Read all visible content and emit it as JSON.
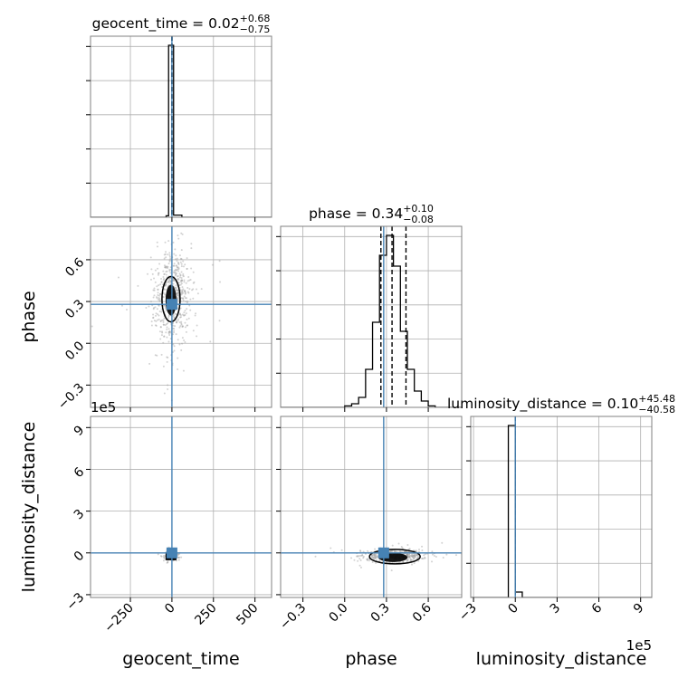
{
  "chart_data": {
    "type": "corner",
    "parameters": [
      "geocent_time",
      "phase",
      "luminosity_distance"
    ],
    "truth": {
      "geocent_time": 0.0,
      "phase": 0.28,
      "luminosity_distance": 0.0
    },
    "titles": [
      {
        "name": "geocent_time",
        "median": "0.02",
        "plus": "+0.68",
        "minus": "−0.75"
      },
      {
        "name": "phase",
        "median": "0.34",
        "plus": "+0.10",
        "minus": "−0.08"
      },
      {
        "name": "luminosity_distance",
        "median": "0.10",
        "plus": "+45.48",
        "minus": "−40.58"
      }
    ],
    "axes": {
      "geocent_time": {
        "range": [
          -490,
          600
        ],
        "ticks": [
          -250,
          0,
          250,
          500
        ],
        "tick_labels": [
          "−250",
          "0",
          "250",
          "500"
        ]
      },
      "phase": {
        "range": [
          -0.46,
          0.84
        ],
        "ticks": [
          -0.3,
          0.0,
          0.3,
          0.6
        ],
        "tick_labels": [
          "−0.3",
          "0.0",
          "0.3",
          "0.6"
        ]
      },
      "luminosity_distance": {
        "range": [
          -3.2,
          9.8
        ],
        "ticks": [
          -3,
          0,
          3,
          6,
          9
        ],
        "tick_labels": [
          "−3",
          "0",
          "3",
          "6",
          "9"
        ],
        "offset_label": "1e5"
      }
    },
    "histograms": {
      "geocent_time": {
        "bins": [
          [
            -490,
            -35,
            0.0
          ],
          [
            -35,
            -20,
            0.008
          ],
          [
            -20,
            -5,
            0.95
          ],
          [
            -5,
            10,
            0.95
          ],
          [
            10,
            60,
            0.012
          ],
          [
            60,
            600,
            0.0
          ]
        ],
        "quantile_lines": [
          -0.73,
          0.02,
          0.7
        ]
      },
      "phase": {
        "bins": [
          [
            -0.46,
            0.0,
            0.0
          ],
          [
            0.0,
            0.05,
            0.008
          ],
          [
            0.05,
            0.1,
            0.02
          ],
          [
            0.1,
            0.15,
            0.055
          ],
          [
            0.15,
            0.2,
            0.21
          ],
          [
            0.2,
            0.25,
            0.47
          ],
          [
            0.25,
            0.3,
            0.84
          ],
          [
            0.3,
            0.35,
            0.95
          ],
          [
            0.35,
            0.4,
            0.78
          ],
          [
            0.4,
            0.45,
            0.42
          ],
          [
            0.45,
            0.5,
            0.21
          ],
          [
            0.5,
            0.55,
            0.09
          ],
          [
            0.55,
            0.6,
            0.035
          ],
          [
            0.6,
            0.65,
            0.008
          ],
          [
            0.65,
            0.84,
            0.0
          ]
        ],
        "quantile_lines": [
          0.26,
          0.34,
          0.44
        ]
      },
      "luminosity_distance": {
        "bins": [
          [
            -3.2,
            -0.5,
            0.0
          ],
          [
            -0.5,
            0.0,
            0.95
          ],
          [
            0.0,
            0.5,
            0.03
          ],
          [
            0.5,
            9.8,
            0.0
          ]
        ],
        "quantile_lines": [
          -0.0004,
          1e-06,
          0.00045
        ]
      }
    },
    "scatter_centers": {
      "phase_vs_geocent_time": {
        "x": 0,
        "y": 0.33
      },
      "luminosity_distance_vs_geocent_time": {
        "x": 0,
        "y": -0.2
      },
      "luminosity_distance_vs_phase": {
        "x": 0.36,
        "y": -0.2
      }
    },
    "grid": true,
    "colors": {
      "truth": "#4682b4",
      "hist": "#000000",
      "points": "#9e9e9e",
      "grid": "#b0b0b0"
    }
  }
}
